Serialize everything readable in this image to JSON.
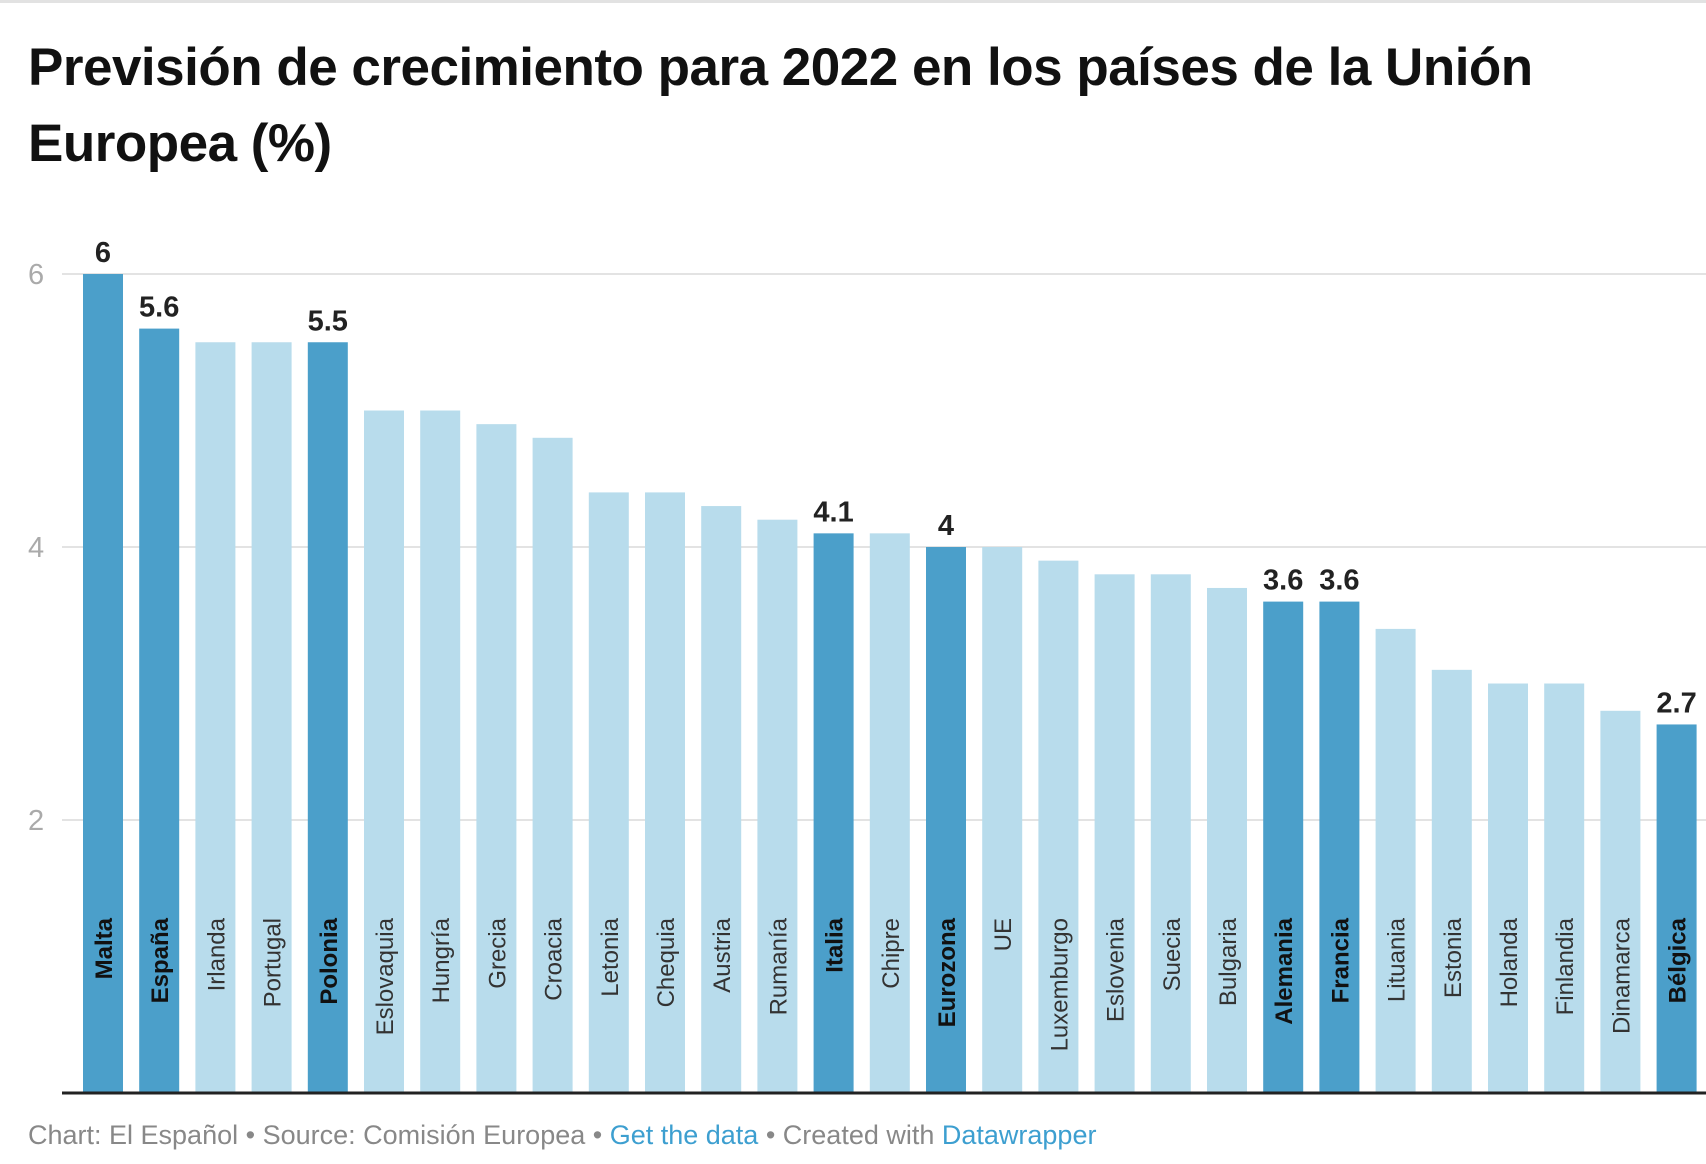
{
  "chart_data": {
    "type": "bar",
    "title": "Previsión de crecimiento para 2022 en los países de la Unión Europea (%)",
    "categories": [
      "Malta",
      "España",
      "Irlanda",
      "Portugal",
      "Polonia",
      "Eslovaquia",
      "Hungría",
      "Grecia",
      "Croacia",
      "Letonia",
      "Chequia",
      "Austria",
      "Rumanía",
      "Italia",
      "Chipre",
      "Eurozona",
      "UE",
      "Luxemburgo",
      "Eslovenia",
      "Suecia",
      "Bulgaria",
      "Alemania",
      "Francia",
      "Lituania",
      "Estonia",
      "Holanda",
      "Finlandia",
      "Dinamarca",
      "Bélgica"
    ],
    "values": [
      6,
      5.6,
      5.5,
      5.5,
      5.5,
      5.0,
      5.0,
      4.9,
      4.8,
      4.4,
      4.4,
      4.3,
      4.2,
      4.1,
      4.1,
      4,
      4.0,
      3.9,
      3.8,
      3.8,
      3.7,
      3.6,
      3.6,
      3.4,
      3.1,
      3.0,
      3.0,
      2.8,
      2.7
    ],
    "highlighted": [
      "Malta",
      "España",
      "Polonia",
      "Italia",
      "Eurozona",
      "Alemania",
      "Francia",
      "Bélgica"
    ],
    "data_labels": {
      "Malta": "6",
      "España": "5.6",
      "Polonia": "5.5",
      "Italia": "4.1",
      "Eurozona": "4",
      "Alemania": "3.6",
      "Francia": "3.6",
      "Bélgica": "2.7"
    },
    "xlabel": "",
    "ylabel": "",
    "ylim": [
      0,
      6
    ],
    "yticks": [
      2,
      4,
      6
    ],
    "grid": true,
    "colors": {
      "highlight": "#4b9fca",
      "default": "#b8dcec",
      "grid": "#e3e3e3",
      "axis": "#222222",
      "tick_label": "#aaaaaa"
    }
  },
  "footer": {
    "chart_credit": "Chart: El Español",
    "sep1": " • ",
    "source": "Source: Comisión Europea",
    "sep2": " • ",
    "get_data": "Get the data",
    "sep3": " • ",
    "created_with": "Created with ",
    "datawrapper": "Datawrapper"
  }
}
